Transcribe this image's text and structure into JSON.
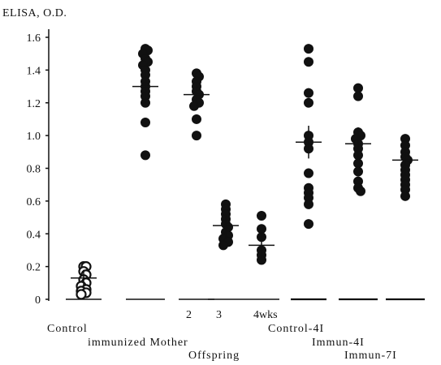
{
  "chart_data": {
    "type": "scatter",
    "title": "",
    "ylabel": "ELISA,  O.D.",
    "xlabel": "",
    "ylim": [
      0,
      1.6
    ],
    "yticks": [
      "0",
      "0.2",
      "0.4",
      "0.6",
      "0.8",
      "1.0",
      "1.2",
      "1.4",
      "1.6"
    ],
    "grid": false,
    "legend": "none",
    "colors": {
      "filled": "#111111",
      "open": "#ffffff",
      "axis": "#111111"
    },
    "groups": [
      {
        "id": "control",
        "marker": "open",
        "mean": 0.13,
        "sd": 0.05,
        "values": [
          0.2,
          0.2,
          0.17,
          0.15,
          0.12,
          0.1,
          0.08,
          0.06,
          0.05,
          0.04,
          0.03
        ]
      },
      {
        "id": "immunized-mother",
        "marker": "filled",
        "mean": 1.3,
        "sd": 0.1,
        "values": [
          1.53,
          1.52,
          1.5,
          1.47,
          1.45,
          1.43,
          1.4,
          1.37,
          1.33,
          1.3,
          1.27,
          1.24,
          1.2,
          1.08,
          0.88
        ]
      },
      {
        "id": "offspring-2",
        "marker": "filled",
        "mean": 1.25,
        "sd": 0.08,
        "values": [
          1.38,
          1.36,
          1.33,
          1.3,
          1.27,
          1.25,
          1.22,
          1.2,
          1.18,
          1.1,
          1.0
        ]
      },
      {
        "id": "offspring-3",
        "marker": "filled",
        "mean": 0.45,
        "sd": 0.07,
        "values": [
          0.58,
          0.55,
          0.52,
          0.49,
          0.46,
          0.44,
          0.41,
          0.39,
          0.37,
          0.35,
          0.33
        ]
      },
      {
        "id": "offspring-4wks",
        "marker": "filled",
        "mean": 0.33,
        "sd": 0.08,
        "values": [
          0.51,
          0.43,
          0.38,
          0.3,
          0.27,
          0.24
        ]
      },
      {
        "id": "control-41",
        "marker": "filled",
        "mean": 0.96,
        "sd": 0.1,
        "values": [
          1.53,
          1.45,
          1.26,
          1.2,
          1.0,
          0.96,
          0.92,
          0.77,
          0.68,
          0.65,
          0.62,
          0.58,
          0.46
        ]
      },
      {
        "id": "immun-41",
        "marker": "filled",
        "mean": 0.95,
        "sd": 0.1,
        "values": [
          1.29,
          1.24,
          1.02,
          1.0,
          0.98,
          0.95,
          0.92,
          0.88,
          0.83,
          0.78,
          0.72,
          0.68,
          0.66
        ]
      },
      {
        "id": "immun-71",
        "marker": "filled",
        "mean": 0.85,
        "sd": 0.08,
        "values": [
          0.98,
          0.94,
          0.9,
          0.87,
          0.85,
          0.82,
          0.79,
          0.76,
          0.73,
          0.7,
          0.67,
          0.63
        ]
      }
    ],
    "x_labels": [
      {
        "text": "Control"
      },
      {
        "text": "immunized Mother"
      },
      {
        "text": "Offspring"
      },
      {
        "text": "2"
      },
      {
        "text": "3"
      },
      {
        "text": "4wks"
      },
      {
        "text": "Control-4I"
      },
      {
        "text": "Immun-4I"
      },
      {
        "text": "Immun-7I"
      }
    ]
  }
}
